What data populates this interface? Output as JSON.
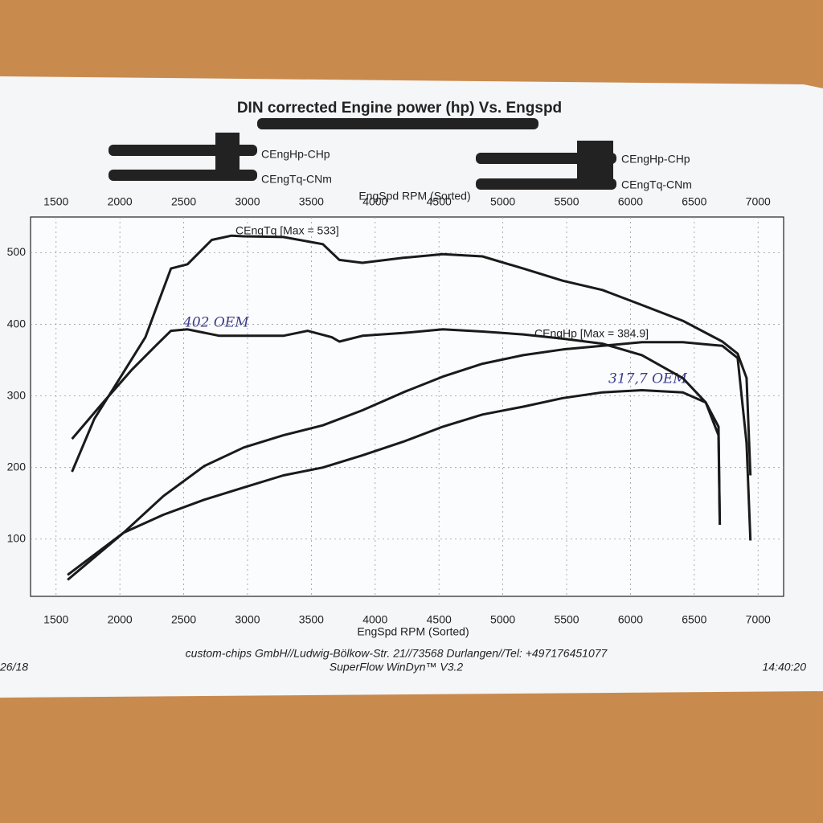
{
  "chart_data": {
    "type": "line",
    "title": "DIN corrected Engine power (hp) Vs. Engspd",
    "x_label": "EngSpd RPM (Sorted)",
    "xlim": [
      1300,
      7200
    ],
    "xticks": [
      1500,
      2000,
      2500,
      3000,
      3500,
      4000,
      4500,
      5000,
      5500,
      6000,
      6500,
      7000
    ],
    "ylim": [
      20,
      550
    ],
    "yticks": [
      100,
      200,
      300,
      400,
      500
    ],
    "grid": true,
    "series": [
      {
        "name": "CEngHp-CHp",
        "color": "#1a1a1a",
        "x": [
          1590,
          2030,
          2340,
          2660,
          2970,
          3280,
          3590,
          3900,
          4220,
          4530,
          4840,
          5160,
          5470,
          5780,
          6090,
          6410,
          6720,
          6840,
          6910,
          6940
        ],
        "values": [
          50,
          109,
          160,
          202,
          228,
          245,
          259,
          280,
          305,
          327,
          345,
          357,
          365,
          370,
          375,
          375,
          370,
          353,
          234,
          98
        ]
      },
      {
        "name": "CEngTq-CNm",
        "color": "#1a1a1a",
        "x": [
          1625,
          1800,
          2000,
          2200,
          2400,
          2530,
          2720,
          2875,
          2970,
          3280,
          3590,
          3720,
          3900,
          4220,
          4530,
          4840,
          5160,
          5470,
          5780,
          6090,
          6410,
          6720,
          6840,
          6910,
          6940
        ],
        "values": [
          194,
          268,
          325,
          382,
          478,
          484,
          518,
          524,
          523,
          522,
          512,
          490,
          486,
          493,
          498,
          495,
          478,
          461,
          448,
          427,
          405,
          376,
          359,
          325,
          189
        ]
      },
      {
        "name": "CEngHp-CHp",
        "color": "#1a1a1a",
        "x": [
          1590,
          2030,
          2340,
          2660,
          2970,
          3280,
          3590,
          3900,
          4220,
          4530,
          4840,
          5160,
          5470,
          5780,
          6090,
          6410,
          6590,
          6690,
          6700
        ],
        "values": [
          43,
          109,
          134,
          155,
          172,
          189,
          200,
          217,
          236,
          257,
          274,
          285,
          297,
          305,
          308,
          305,
          291,
          257,
          120
        ]
      },
      {
        "name": "CEngTq-CNm",
        "color": "#1a1a1a",
        "x": [
          1625,
          1840,
          2090,
          2280,
          2400,
          2530,
          2780,
          3280,
          3470,
          3660,
          3720,
          3900,
          4220,
          4530,
          4840,
          5160,
          5470,
          5780,
          6090,
          6410,
          6590,
          6690,
          6700
        ],
        "values": [
          240,
          285,
          336,
          370,
          391,
          393,
          384,
          384,
          391,
          382,
          376,
          384,
          388,
          393,
          390,
          386,
          380,
          373,
          357,
          325,
          291,
          245,
          120
        ]
      }
    ],
    "annotations": [
      "CEngTq [Max = 533]",
      "CEngHp [Max = 384.9]",
      "402 OEM",
      "317,7 OEM"
    ],
    "footer": [
      "custom-chips GmbH//Ludwig-Bölkow-Str. 21//73568 Durlangen//Tel: +497176451077",
      "SuperFlow WinDyn™ V3.2"
    ],
    "date": "26/18",
    "time": "14:40:20"
  }
}
